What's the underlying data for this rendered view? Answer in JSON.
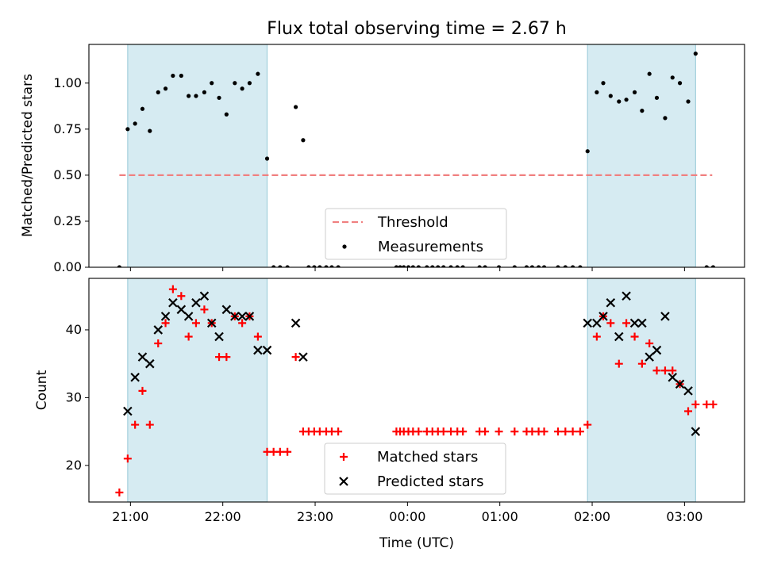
{
  "chart_data": [
    {
      "type": "scatter",
      "title": "Flux total observing time = 2.67 h",
      "ylabel": "Matched/Predicted stars",
      "xlabel": "",
      "x_unit": "hours after 21:00 UTC",
      "xlim": [
        -0.45,
        6.65
      ],
      "ylim": [
        0,
        1.21
      ],
      "yticks": [
        "0.00",
        "0.25",
        "0.50",
        "0.75",
        "1.00"
      ],
      "ytick_values": [
        0,
        0.25,
        0.5,
        0.75,
        1.0
      ],
      "shaded_intervals": [
        [
          -0.03,
          1.48
        ],
        [
          4.95,
          6.12
        ]
      ],
      "threshold": {
        "name": "Threshold",
        "value": 0.5,
        "x_range": [
          -0.12,
          6.3
        ],
        "color": "#f08080"
      },
      "series": [
        {
          "name": "Measurements",
          "color": "#000000",
          "points": [
            [
              -0.12,
              0.0
            ],
            [
              -0.03,
              0.75
            ],
            [
              0.05,
              0.78
            ],
            [
              0.13,
              0.86
            ],
            [
              0.21,
              0.74
            ],
            [
              0.3,
              0.95
            ],
            [
              0.38,
              0.97
            ],
            [
              0.46,
              1.04
            ],
            [
              0.55,
              1.04
            ],
            [
              0.63,
              0.93
            ],
            [
              0.71,
              0.93
            ],
            [
              0.8,
              0.95
            ],
            [
              0.88,
              1.0
            ],
            [
              0.96,
              0.92
            ],
            [
              1.04,
              0.83
            ],
            [
              1.13,
              1.0
            ],
            [
              1.21,
              0.97
            ],
            [
              1.29,
              1.0
            ],
            [
              1.38,
              1.05
            ],
            [
              1.48,
              0.59
            ],
            [
              1.55,
              0.0
            ],
            [
              1.62,
              0.0
            ],
            [
              1.7,
              0.0
            ],
            [
              1.79,
              0.87
            ],
            [
              1.87,
              0.69
            ],
            [
              1.93,
              0.0
            ],
            [
              1.99,
              0.0
            ],
            [
              2.05,
              0.0
            ],
            [
              2.12,
              0.0
            ],
            [
              2.18,
              0.0
            ],
            [
              2.25,
              0.0
            ],
            [
              2.88,
              0.0
            ],
            [
              2.92,
              0.0
            ],
            [
              2.96,
              0.0
            ],
            [
              3.01,
              0.0
            ],
            [
              3.06,
              0.0
            ],
            [
              3.12,
              0.0
            ],
            [
              3.21,
              0.0
            ],
            [
              3.27,
              0.0
            ],
            [
              3.33,
              0.0
            ],
            [
              3.39,
              0.0
            ],
            [
              3.47,
              0.0
            ],
            [
              3.54,
              0.0
            ],
            [
              3.6,
              0.0
            ],
            [
              3.78,
              0.0
            ],
            [
              3.84,
              0.0
            ],
            [
              3.99,
              0.0
            ],
            [
              4.16,
              0.0
            ],
            [
              4.29,
              0.0
            ],
            [
              4.35,
              0.0
            ],
            [
              4.42,
              0.0
            ],
            [
              4.48,
              0.0
            ],
            [
              4.63,
              0.0
            ],
            [
              4.71,
              0.0
            ],
            [
              4.79,
              0.0
            ],
            [
              4.87,
              0.0
            ],
            [
              4.95,
              0.63
            ],
            [
              5.05,
              0.95
            ],
            [
              5.12,
              1.0
            ],
            [
              5.2,
              0.93
            ],
            [
              5.29,
              0.9
            ],
            [
              5.37,
              0.91
            ],
            [
              5.46,
              0.95
            ],
            [
              5.54,
              0.85
            ],
            [
              5.62,
              1.05
            ],
            [
              5.7,
              0.92
            ],
            [
              5.79,
              0.81
            ],
            [
              5.87,
              1.03
            ],
            [
              5.95,
              1.0
            ],
            [
              6.04,
              0.9
            ],
            [
              6.12,
              1.16
            ],
            [
              6.24,
              0.0
            ],
            [
              6.31,
              0.0
            ]
          ]
        }
      ],
      "legend": {
        "placement": "lower-center",
        "entries": [
          "Threshold",
          "Measurements"
        ]
      }
    },
    {
      "type": "scatter",
      "title": "",
      "ylabel": "Count",
      "xlabel": "Time (UTC)",
      "x_unit": "hours after 21:00 UTC",
      "xlim": [
        -0.45,
        6.65
      ],
      "ylim": [
        14.6,
        47.6
      ],
      "yticks": [
        "20",
        "30",
        "40"
      ],
      "ytick_values": [
        20,
        30,
        40
      ],
      "xticks": [
        "21:00",
        "22:00",
        "23:00",
        "00:00",
        "01:00",
        "02:00",
        "03:00"
      ],
      "xtick_values": [
        0,
        1,
        2,
        3,
        4,
        5,
        6
      ],
      "shaded_intervals": [
        [
          -0.03,
          1.48
        ],
        [
          4.95,
          6.12
        ]
      ],
      "series": [
        {
          "name": "Matched stars",
          "marker": "plus",
          "color": "#ff0000",
          "points": [
            [
              -0.12,
              16
            ],
            [
              -0.03,
              21
            ],
            [
              0.05,
              26
            ],
            [
              0.13,
              31
            ],
            [
              0.21,
              26
            ],
            [
              0.3,
              38
            ],
            [
              0.38,
              41
            ],
            [
              0.46,
              46
            ],
            [
              0.55,
              45
            ],
            [
              0.63,
              39
            ],
            [
              0.71,
              41
            ],
            [
              0.8,
              43
            ],
            [
              0.88,
              41
            ],
            [
              0.96,
              36
            ],
            [
              1.04,
              36
            ],
            [
              1.13,
              42
            ],
            [
              1.21,
              41
            ],
            [
              1.29,
              42
            ],
            [
              1.38,
              39
            ],
            [
              1.48,
              22
            ],
            [
              1.55,
              22
            ],
            [
              1.62,
              22
            ],
            [
              1.7,
              22
            ],
            [
              1.79,
              36
            ],
            [
              1.87,
              25
            ],
            [
              1.93,
              25
            ],
            [
              1.99,
              25
            ],
            [
              2.05,
              25
            ],
            [
              2.12,
              25
            ],
            [
              2.18,
              25
            ],
            [
              2.25,
              25
            ],
            [
              2.88,
              25
            ],
            [
              2.92,
              25
            ],
            [
              2.96,
              25
            ],
            [
              3.01,
              25
            ],
            [
              3.06,
              25
            ],
            [
              3.12,
              25
            ],
            [
              3.21,
              25
            ],
            [
              3.27,
              25
            ],
            [
              3.33,
              25
            ],
            [
              3.39,
              25
            ],
            [
              3.47,
              25
            ],
            [
              3.54,
              25
            ],
            [
              3.6,
              25
            ],
            [
              3.78,
              25
            ],
            [
              3.84,
              25
            ],
            [
              3.99,
              25
            ],
            [
              4.16,
              25
            ],
            [
              4.29,
              25
            ],
            [
              4.35,
              25
            ],
            [
              4.42,
              25
            ],
            [
              4.48,
              25
            ],
            [
              4.63,
              25
            ],
            [
              4.71,
              25
            ],
            [
              4.79,
              25
            ],
            [
              4.87,
              25
            ],
            [
              4.95,
              26
            ],
            [
              5.05,
              39
            ],
            [
              5.12,
              42
            ],
            [
              5.2,
              41
            ],
            [
              5.29,
              35
            ],
            [
              5.37,
              41
            ],
            [
              5.46,
              39
            ],
            [
              5.54,
              35
            ],
            [
              5.62,
              38
            ],
            [
              5.7,
              34
            ],
            [
              5.79,
              34
            ],
            [
              5.87,
              34
            ],
            [
              5.95,
              32
            ],
            [
              6.04,
              28
            ],
            [
              6.12,
              29
            ],
            [
              6.24,
              29
            ],
            [
              6.31,
              29
            ]
          ]
        },
        {
          "name": "Predicted stars",
          "marker": "x",
          "color": "#000000",
          "points": [
            [
              -0.03,
              28
            ],
            [
              0.05,
              33
            ],
            [
              0.13,
              36
            ],
            [
              0.21,
              35
            ],
            [
              0.3,
              40
            ],
            [
              0.38,
              42
            ],
            [
              0.46,
              44
            ],
            [
              0.55,
              43
            ],
            [
              0.63,
              42
            ],
            [
              0.71,
              44
            ],
            [
              0.8,
              45
            ],
            [
              0.88,
              41
            ],
            [
              0.96,
              39
            ],
            [
              1.04,
              43
            ],
            [
              1.13,
              42
            ],
            [
              1.21,
              42
            ],
            [
              1.29,
              42
            ],
            [
              1.38,
              37
            ],
            [
              1.48,
              37
            ],
            [
              1.79,
              41
            ],
            [
              1.87,
              36
            ],
            [
              4.95,
              41
            ],
            [
              5.05,
              41
            ],
            [
              5.12,
              42
            ],
            [
              5.2,
              44
            ],
            [
              5.29,
              39
            ],
            [
              5.37,
              45
            ],
            [
              5.46,
              41
            ],
            [
              5.54,
              41
            ],
            [
              5.62,
              36
            ],
            [
              5.7,
              37
            ],
            [
              5.79,
              42
            ],
            [
              5.87,
              33
            ],
            [
              5.95,
              32
            ],
            [
              6.04,
              31
            ],
            [
              6.12,
              25
            ]
          ]
        }
      ],
      "legend": {
        "placement": "lower-center",
        "entries": [
          "Matched stars",
          "Predicted stars"
        ]
      }
    }
  ]
}
